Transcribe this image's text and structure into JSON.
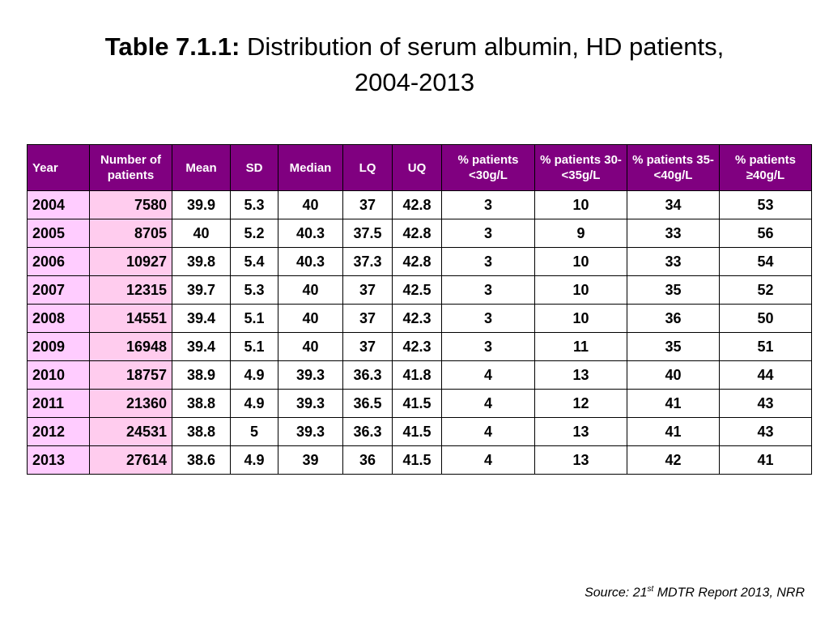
{
  "title": {
    "label": "Table 7.1.1:",
    "text_line1": "Distribution of serum albumin, HD patients,",
    "text_line2": "2004-2013"
  },
  "table": {
    "headers": [
      "Year",
      "Number of patients",
      "Mean",
      "SD",
      "Median",
      "LQ",
      "UQ",
      "% patients <30g/L",
      "% patients 30-<35g/L",
      "% patients 35-<40g/L",
      "% patients ≥40g/L"
    ],
    "rows": [
      [
        "2004",
        "7580",
        "39.9",
        "5.3",
        "40",
        "37",
        "42.8",
        "3",
        "10",
        "34",
        "53"
      ],
      [
        "2005",
        "8705",
        "40",
        "5.2",
        "40.3",
        "37.5",
        "42.8",
        "3",
        "9",
        "33",
        "56"
      ],
      [
        "2006",
        "10927",
        "39.8",
        "5.4",
        "40.3",
        "37.3",
        "42.8",
        "3",
        "10",
        "33",
        "54"
      ],
      [
        "2007",
        "12315",
        "39.7",
        "5.3",
        "40",
        "37",
        "42.5",
        "3",
        "10",
        "35",
        "52"
      ],
      [
        "2008",
        "14551",
        "39.4",
        "5.1",
        "40",
        "37",
        "42.3",
        "3",
        "10",
        "36",
        "50"
      ],
      [
        "2009",
        "16948",
        "39.4",
        "5.1",
        "40",
        "37",
        "42.3",
        "3",
        "11",
        "35",
        "51"
      ],
      [
        "2010",
        "18757",
        "38.9",
        "4.9",
        "39.3",
        "36.3",
        "41.8",
        "4",
        "13",
        "40",
        "44"
      ],
      [
        "2011",
        "21360",
        "38.8",
        "4.9",
        "39.3",
        "36.5",
        "41.5",
        "4",
        "12",
        "41",
        "43"
      ],
      [
        "2012",
        "24531",
        "38.8",
        "5",
        "39.3",
        "36.3",
        "41.5",
        "4",
        "13",
        "41",
        "43"
      ],
      [
        "2013",
        "27614",
        "38.6",
        "4.9",
        "39",
        "36",
        "41.5",
        "4",
        "13",
        "42",
        "41"
      ]
    ]
  },
  "source": {
    "prefix": "Source: 21",
    "sup": "st",
    "suffix": " MDTR Report 2013, NRR"
  },
  "colors": {
    "header_bg": "#800080",
    "year_bg": "#ffccff",
    "patients_bg": "#ffccee"
  }
}
